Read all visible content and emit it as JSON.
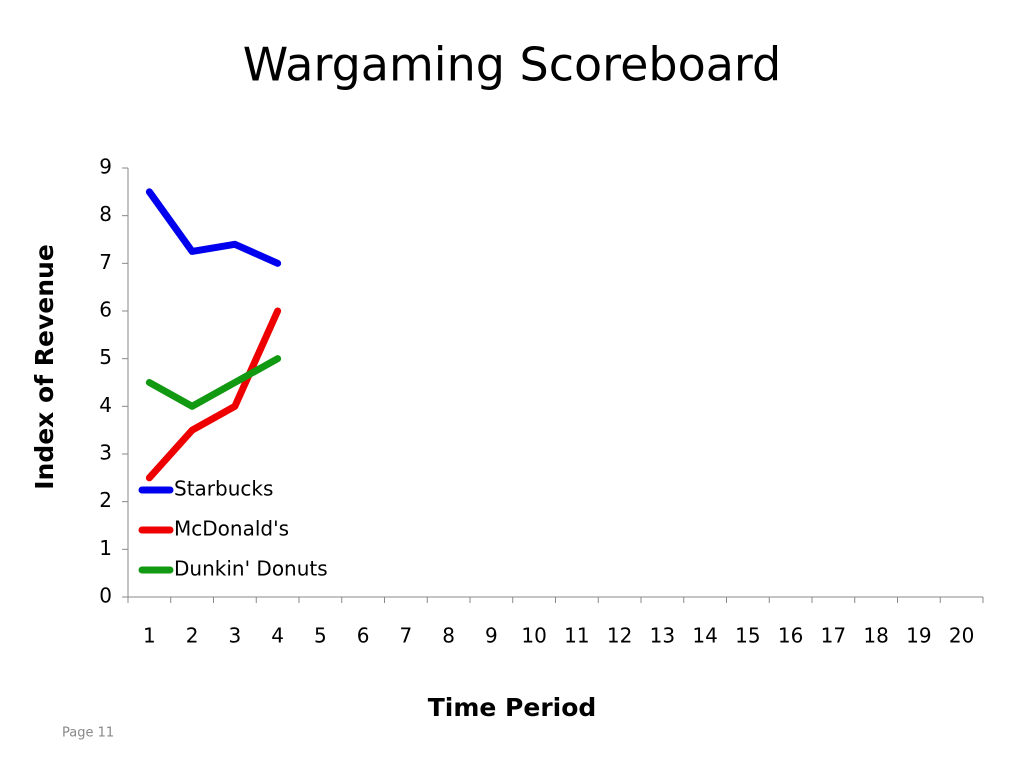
{
  "chart_data": {
    "type": "line",
    "title": "Wargaming Scoreboard",
    "x_label": "Time Period",
    "y_label": "Index of Revenue",
    "categories": [
      "1",
      "2",
      "3",
      "4",
      "5",
      "6",
      "7",
      "8",
      "9",
      "10",
      "11",
      "12",
      "13",
      "14",
      "15",
      "16",
      "17",
      "18",
      "19",
      "20"
    ],
    "series": [
      {
        "name": "Starbucks",
        "color": "#0000ee",
        "values": [
          8.5,
          7.25,
          7.4,
          7,
          null,
          null,
          null,
          null,
          null,
          null,
          null,
          null,
          null,
          null,
          null,
          null,
          null,
          null,
          null,
          null
        ]
      },
      {
        "name": "McDonald's",
        "color": "#ee0000",
        "values": [
          2.5,
          3.5,
          4,
          6,
          null,
          null,
          null,
          null,
          null,
          null,
          null,
          null,
          null,
          null,
          null,
          null,
          null,
          null,
          null,
          null
        ]
      },
      {
        "name": "Dunkin' Donuts",
        "color": "#119911",
        "values": [
          4.5,
          4,
          4.5,
          5,
          null,
          null,
          null,
          null,
          null,
          null,
          null,
          null,
          null,
          null,
          null,
          null,
          null,
          null,
          null,
          null
        ]
      }
    ],
    "ylim": [
      0,
      9
    ],
    "yticks": [
      0,
      1,
      2,
      3,
      4,
      5,
      6,
      7,
      8,
      9
    ],
    "grid": false,
    "legend": "lower left"
  },
  "footer": "Page 11"
}
